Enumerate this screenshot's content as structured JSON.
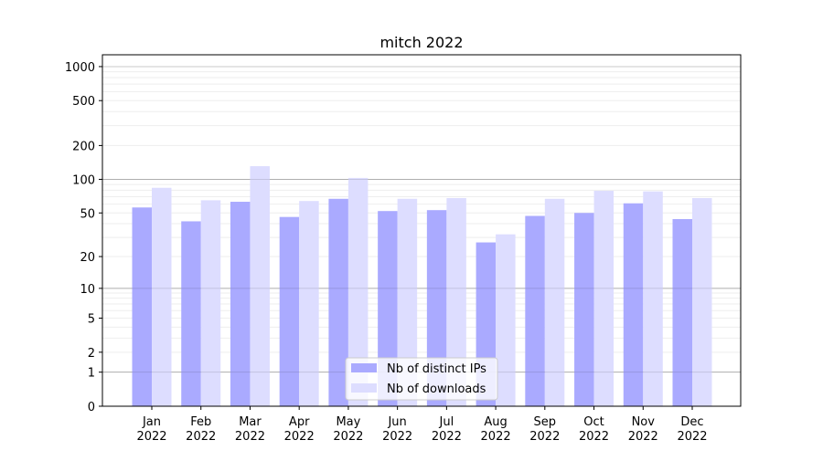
{
  "chart_data": {
    "type": "bar",
    "title": "mitch 2022",
    "xlabel": "",
    "ylabel": "",
    "yscale": "log(1+y)",
    "ylim": [
      0,
      1300
    ],
    "yticks": [
      0,
      1,
      2,
      5,
      10,
      20,
      50,
      100,
      200,
      500,
      1000
    ],
    "grid": true,
    "legend_position": "bottom-center",
    "categories": [
      "Jan\n2022",
      "Feb\n2022",
      "Mar\n2022",
      "Apr\n2022",
      "May\n2022",
      "Jun\n2022",
      "Jul\n2022",
      "Aug\n2022",
      "Sep\n2022",
      "Oct\n2022",
      "Nov\n2022",
      "Dec\n2022"
    ],
    "series": [
      {
        "name": "Nb of distinct IPs",
        "color": "#aaaaff",
        "values": [
          56,
          42,
          63,
          46,
          67,
          52,
          53,
          27,
          47,
          50,
          61,
          44
        ]
      },
      {
        "name": "Nb of downloads",
        "color": "#ddddff",
        "values": [
          84,
          65,
          131,
          64,
          103,
          67,
          68,
          32,
          67,
          79,
          78,
          68
        ]
      }
    ]
  }
}
